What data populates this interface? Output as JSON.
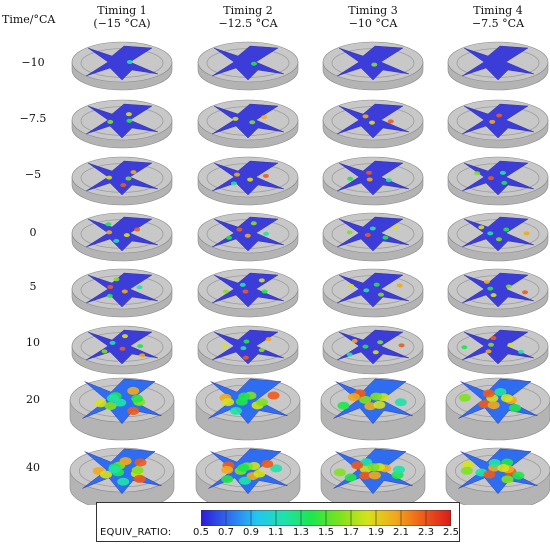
{
  "row_axis_title": "Time/°CA",
  "columns": [
    {
      "title": "Timing 1",
      "subtitle": "(−15 °CA)"
    },
    {
      "title": "Timing 2",
      "subtitle": "−12.5 °CA"
    },
    {
      "title": "Timing 3",
      "subtitle": "−10 °CA"
    },
    {
      "title": "Timing 4",
      "subtitle": "−7.5 °CA"
    }
  ],
  "rows": [
    "−10",
    "−7.5",
    "−5",
    "0",
    "5",
    "10",
    "20",
    "40"
  ],
  "legend": {
    "title": "EQUIV_RATIO:",
    "ticks": [
      "0.5",
      "0.7",
      "0.9",
      "1.1",
      "1.3",
      "1.5",
      "1.7",
      "1.9",
      "2.1",
      "2.3",
      "2.5"
    ],
    "min": 0.5,
    "max": 2.5,
    "colormap": [
      "#2b1bd9",
      "#2f6df0",
      "#22c6f2",
      "#1fe2a8",
      "#1ee64a",
      "#7ee21c",
      "#d6e21a",
      "#f2a81b",
      "#f05a1a",
      "#d81b1b"
    ]
  },
  "colors": {
    "piston": "#c8c8c8",
    "piston_edge": "#8a8a8a",
    "cutout": "#3c3cd8"
  }
}
